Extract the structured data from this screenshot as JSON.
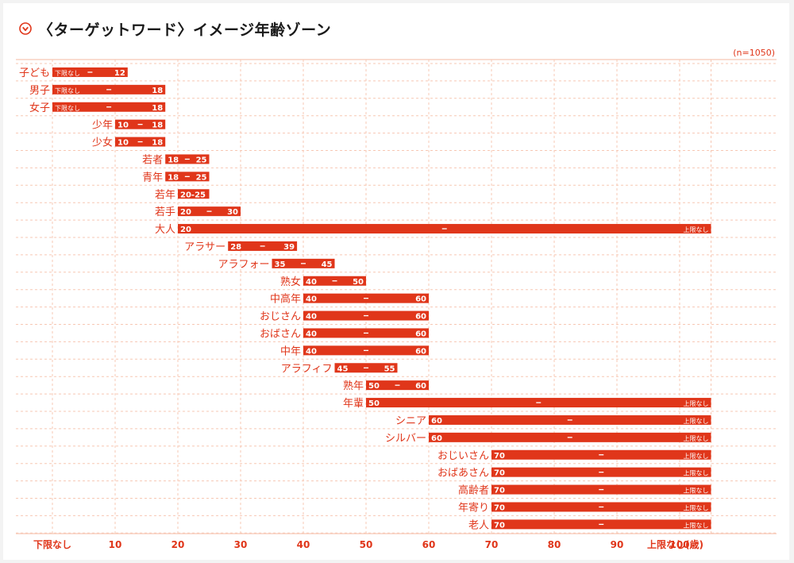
{
  "title": "〈ターゲットワード〉イメージ年齢ゾーン",
  "title_icon": "chevron-down-circle-icon",
  "n_label": "(n=1050)",
  "colors": {
    "accent": "#e0361a",
    "grid": "#f7c8b4",
    "text_dark": "#1a1a1a"
  },
  "chart_data": {
    "type": "bar",
    "orientation": "horizontal-range",
    "title": "〈ターゲットワード〉イメージ年齢ゾーン",
    "xlim": [
      0,
      105
    ],
    "x_ticks": [
      {
        "value": 0,
        "label": "下限なし"
      },
      {
        "value": 10,
        "label": "10"
      },
      {
        "value": 20,
        "label": "20"
      },
      {
        "value": 30,
        "label": "30"
      },
      {
        "value": 40,
        "label": "40"
      },
      {
        "value": 50,
        "label": "50"
      },
      {
        "value": 60,
        "label": "60"
      },
      {
        "value": 70,
        "label": "70"
      },
      {
        "value": 80,
        "label": "80"
      },
      {
        "value": 90,
        "label": "90"
      },
      {
        "value": 100,
        "label": "100"
      },
      {
        "value": 105,
        "label": "上限なし(歳)"
      }
    ],
    "grid": true,
    "rows": [
      {
        "label": "子ども",
        "start": 0,
        "end": 12,
        "start_label": "下限なし",
        "end_label": "12"
      },
      {
        "label": "男子",
        "start": 0,
        "end": 18,
        "start_label": "下限なし",
        "end_label": "18"
      },
      {
        "label": "女子",
        "start": 0,
        "end": 18,
        "start_label": "下限なし",
        "end_label": "18"
      },
      {
        "label": "少年",
        "start": 10,
        "end": 18,
        "start_label": "10",
        "end_label": "18"
      },
      {
        "label": "少女",
        "start": 10,
        "end": 18,
        "start_label": "10",
        "end_label": "18"
      },
      {
        "label": "若者",
        "start": 18,
        "end": 25,
        "start_label": "18",
        "end_label": "25"
      },
      {
        "label": "青年",
        "start": 18,
        "end": 25,
        "start_label": "18",
        "end_label": "25"
      },
      {
        "label": "若年",
        "start": 20,
        "end": 25,
        "single_label": "20-25"
      },
      {
        "label": "若手",
        "start": 20,
        "end": 30,
        "start_label": "20",
        "end_label": "30"
      },
      {
        "label": "大人",
        "start": 20,
        "end": 105,
        "start_label": "20",
        "end_label": "上限なし"
      },
      {
        "label": "アラサー",
        "start": 28,
        "end": 39,
        "start_label": "28",
        "end_label": "39"
      },
      {
        "label": "アラフォー",
        "start": 35,
        "end": 45,
        "start_label": "35",
        "end_label": "45"
      },
      {
        "label": "熟女",
        "start": 40,
        "end": 50,
        "start_label": "40",
        "end_label": "50"
      },
      {
        "label": "中高年",
        "start": 40,
        "end": 60,
        "start_label": "40",
        "end_label": "60"
      },
      {
        "label": "おじさん",
        "start": 40,
        "end": 60,
        "start_label": "40",
        "end_label": "60"
      },
      {
        "label": "おばさん",
        "start": 40,
        "end": 60,
        "start_label": "40",
        "end_label": "60"
      },
      {
        "label": "中年",
        "start": 40,
        "end": 60,
        "start_label": "40",
        "end_label": "60"
      },
      {
        "label": "アラフィフ",
        "start": 45,
        "end": 55,
        "start_label": "45",
        "end_label": "55"
      },
      {
        "label": "熟年",
        "start": 50,
        "end": 60,
        "start_label": "50",
        "end_label": "60"
      },
      {
        "label": "年輩",
        "start": 50,
        "end": 105,
        "start_label": "50",
        "end_label": "上限なし"
      },
      {
        "label": "シニア",
        "start": 60,
        "end": 105,
        "start_label": "60",
        "end_label": "上限なし"
      },
      {
        "label": "シルバー",
        "start": 60,
        "end": 105,
        "start_label": "60",
        "end_label": "上限なし"
      },
      {
        "label": "おじいさん",
        "start": 70,
        "end": 105,
        "start_label": "70",
        "end_label": "上限なし"
      },
      {
        "label": "おばあさん",
        "start": 70,
        "end": 105,
        "start_label": "70",
        "end_label": "上限なし"
      },
      {
        "label": "高齢者",
        "start": 70,
        "end": 105,
        "start_label": "70",
        "end_label": "上限なし"
      },
      {
        "label": "年寄り",
        "start": 70,
        "end": 105,
        "start_label": "70",
        "end_label": "上限なし"
      },
      {
        "label": "老人",
        "start": 70,
        "end": 105,
        "start_label": "70",
        "end_label": "上限なし"
      }
    ]
  }
}
